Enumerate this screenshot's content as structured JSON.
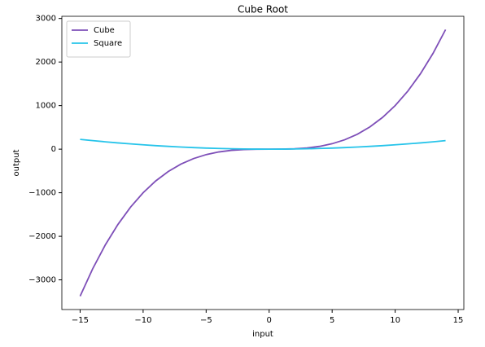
{
  "chart_data": {
    "type": "line",
    "title": "Cube Root",
    "xlabel": "input",
    "ylabel": "output",
    "x": [
      -15,
      -14,
      -13,
      -12,
      -11,
      -10,
      -9,
      -8,
      -7,
      -6,
      -5,
      -4,
      -3,
      -2,
      -1,
      0,
      1,
      2,
      3,
      4,
      5,
      6,
      7,
      8,
      9,
      10,
      11,
      12,
      13,
      14
    ],
    "series": [
      {
        "name": "Cube",
        "color": "#7e4fb8",
        "values": [
          -3375,
          -2744,
          -2197,
          -1728,
          -1331,
          -1000,
          -729,
          -512,
          -343,
          -216,
          -125,
          -64,
          -27,
          -8,
          -1,
          0,
          1,
          8,
          27,
          64,
          125,
          216,
          343,
          512,
          729,
          1000,
          1331,
          1728,
          2197,
          2744
        ]
      },
      {
        "name": "Square",
        "color": "#27c4ea",
        "values": [
          225,
          196,
          169,
          144,
          121,
          100,
          81,
          64,
          49,
          36,
          25,
          16,
          9,
          4,
          1,
          0,
          1,
          4,
          9,
          16,
          25,
          36,
          49,
          64,
          81,
          100,
          121,
          144,
          169,
          196
        ]
      }
    ],
    "xlim": [
      -16.45,
      15.45
    ],
    "ylim": [
      -3681,
      3050
    ],
    "xticks": [
      {
        "value": -15,
        "label": "−15"
      },
      {
        "value": -10,
        "label": "−10"
      },
      {
        "value": -5,
        "label": "−5"
      },
      0,
      5,
      10,
      15
    ],
    "yticks": [
      {
        "value": -3000,
        "label": "−3000"
      },
      {
        "value": -2000,
        "label": "−2000"
      },
      {
        "value": -1000,
        "label": "−1000"
      },
      0,
      1000,
      2000,
      3000
    ],
    "legend": "upper left",
    "grid": false
  }
}
